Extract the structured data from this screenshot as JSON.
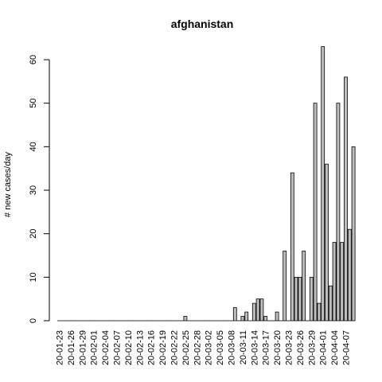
{
  "chart_data": {
    "type": "bar",
    "title": "afghanistan",
    "xlabel": "",
    "ylabel": "# new cases/day",
    "ylim": [
      0,
      63
    ],
    "yticks": [
      0,
      10,
      20,
      30,
      40,
      50,
      60
    ],
    "categories": [
      "20-01-23",
      "20-01-24",
      "20-01-25",
      "20-01-26",
      "20-01-27",
      "20-01-28",
      "20-01-29",
      "20-01-30",
      "20-01-31",
      "20-02-01",
      "20-02-02",
      "20-02-03",
      "20-02-04",
      "20-02-05",
      "20-02-06",
      "20-02-07",
      "20-02-08",
      "20-02-09",
      "20-02-10",
      "20-02-11",
      "20-02-12",
      "20-02-13",
      "20-02-14",
      "20-02-15",
      "20-02-16",
      "20-02-17",
      "20-02-18",
      "20-02-19",
      "20-02-20",
      "20-02-21",
      "20-02-22",
      "20-02-23",
      "20-02-24",
      "20-02-25",
      "20-02-26",
      "20-02-27",
      "20-02-28",
      "20-02-29",
      "20-03-01",
      "20-03-02",
      "20-03-03",
      "20-03-04",
      "20-03-05",
      "20-03-06",
      "20-03-07",
      "20-03-08",
      "20-03-09",
      "20-03-10",
      "20-03-11",
      "20-03-12",
      "20-03-13",
      "20-03-14",
      "20-03-15",
      "20-03-16",
      "20-03-17",
      "20-03-18",
      "20-03-19",
      "20-03-20",
      "20-03-21",
      "20-03-22",
      "20-03-23",
      "20-03-24",
      "20-03-25",
      "20-03-26",
      "20-03-27",
      "20-03-28",
      "20-03-29",
      "20-03-30",
      "20-03-31",
      "20-04-01",
      "20-04-02",
      "20-04-03",
      "20-04-04",
      "20-04-05",
      "20-04-06",
      "20-04-07",
      "20-04-08",
      "20-04-09"
    ],
    "tick_labels": [
      "20-01-23",
      "20-01-26",
      "20-01-29",
      "20-02-01",
      "20-02-04",
      "20-02-07",
      "20-02-10",
      "20-02-13",
      "20-02-16",
      "20-02-19",
      "20-02-22",
      "20-02-25",
      "20-02-28",
      "20-03-02",
      "20-03-05",
      "20-03-08",
      "20-03-11",
      "20-03-14",
      "20-03-17",
      "20-03-20",
      "20-03-23",
      "20-03-26",
      "20-03-29",
      "20-04-01",
      "20-04-04",
      "20-04-07"
    ],
    "values": [
      0,
      0,
      0,
      0,
      0,
      0,
      0,
      0,
      0,
      0,
      0,
      0,
      0,
      0,
      0,
      0,
      0,
      0,
      0,
      0,
      0,
      0,
      0,
      0,
      0,
      0,
      0,
      0,
      0,
      0,
      0,
      0,
      0,
      1,
      0,
      0,
      0,
      0,
      0,
      0,
      0,
      0,
      0,
      0,
      0,
      0,
      3,
      0,
      1,
      2,
      0,
      4,
      5,
      5,
      1,
      0,
      0,
      2,
      0,
      16,
      0,
      34,
      10,
      10,
      16,
      0,
      10,
      50,
      4,
      63,
      36,
      8,
      18,
      50,
      18,
      56,
      21,
      40
    ],
    "grid": false,
    "legend": "none"
  }
}
